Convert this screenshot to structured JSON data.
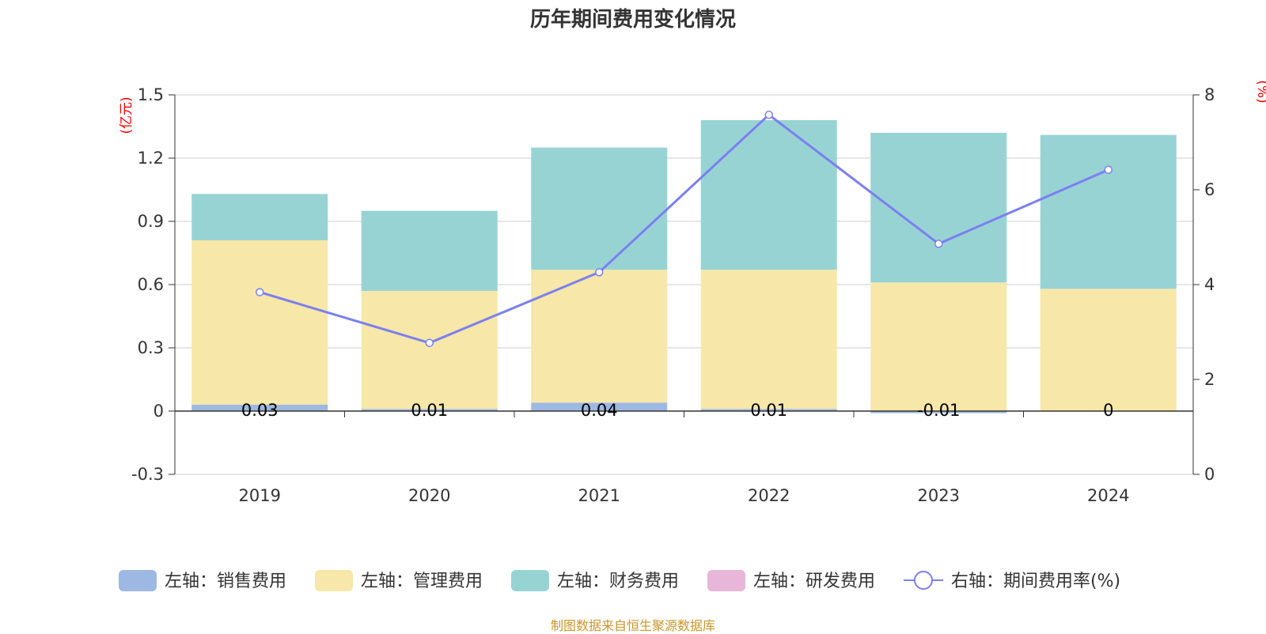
{
  "title": "历年期间费用变化情况",
  "source_note": "制图数据来自恒生聚源数据库",
  "colors": {
    "sales": "#9db8e2",
    "admin": "#f7e7a8",
    "finance": "#98d3d4",
    "rnd": "#e8b6d8",
    "rate_line": "#7b7ff0",
    "axis_unit": "#ee0000",
    "grid": "#cccccc",
    "text": "#333333"
  },
  "chart_data": {
    "type": "bar",
    "stacked": true,
    "categories": [
      "2019",
      "2020",
      "2021",
      "2022",
      "2023",
      "2024"
    ],
    "y_left": {
      "unit_label": "(亿元)",
      "ylim": [
        -0.3,
        1.5
      ],
      "ticks": [
        "-0.3",
        "0",
        "0.3",
        "0.6",
        "0.9",
        "1.2",
        "1.5"
      ],
      "tick_values": [
        -0.3,
        0,
        0.3,
        0.6,
        0.9,
        1.2,
        1.5
      ]
    },
    "y_right": {
      "unit_label": "(%)",
      "ylim": [
        0,
        8
      ],
      "ticks": [
        "0",
        "2",
        "4",
        "6",
        "8"
      ],
      "tick_values": [
        0,
        2,
        4,
        6,
        8
      ]
    },
    "grid": true,
    "legend_position": "bottom",
    "series": [
      {
        "name": "左轴：销售费用",
        "key": "sales",
        "axis": "left",
        "kind": "bar",
        "values": [
          0.03,
          0.01,
          0.04,
          0.01,
          -0.01,
          0
        ],
        "labels": [
          "0.03",
          "0.01",
          "0.04",
          "0.01",
          "-0.01",
          "0"
        ]
      },
      {
        "name": "左轴：管理费用",
        "key": "admin",
        "axis": "left",
        "kind": "bar",
        "values": [
          0.78,
          0.56,
          0.63,
          0.66,
          0.61,
          0.58
        ]
      },
      {
        "name": "左轴：财务费用",
        "key": "finance",
        "axis": "left",
        "kind": "bar",
        "values": [
          0.22,
          0.38,
          0.58,
          0.71,
          0.71,
          0.73
        ]
      },
      {
        "name": "左轴：研发费用",
        "key": "rnd",
        "axis": "left",
        "kind": "bar",
        "values": [
          0,
          0,
          0,
          0,
          0,
          0
        ]
      },
      {
        "name": "右轴：期间费用率(%)",
        "key": "rate_line",
        "axis": "right",
        "kind": "line",
        "values": [
          3.84,
          2.77,
          4.26,
          7.58,
          4.86,
          6.42
        ]
      }
    ]
  }
}
